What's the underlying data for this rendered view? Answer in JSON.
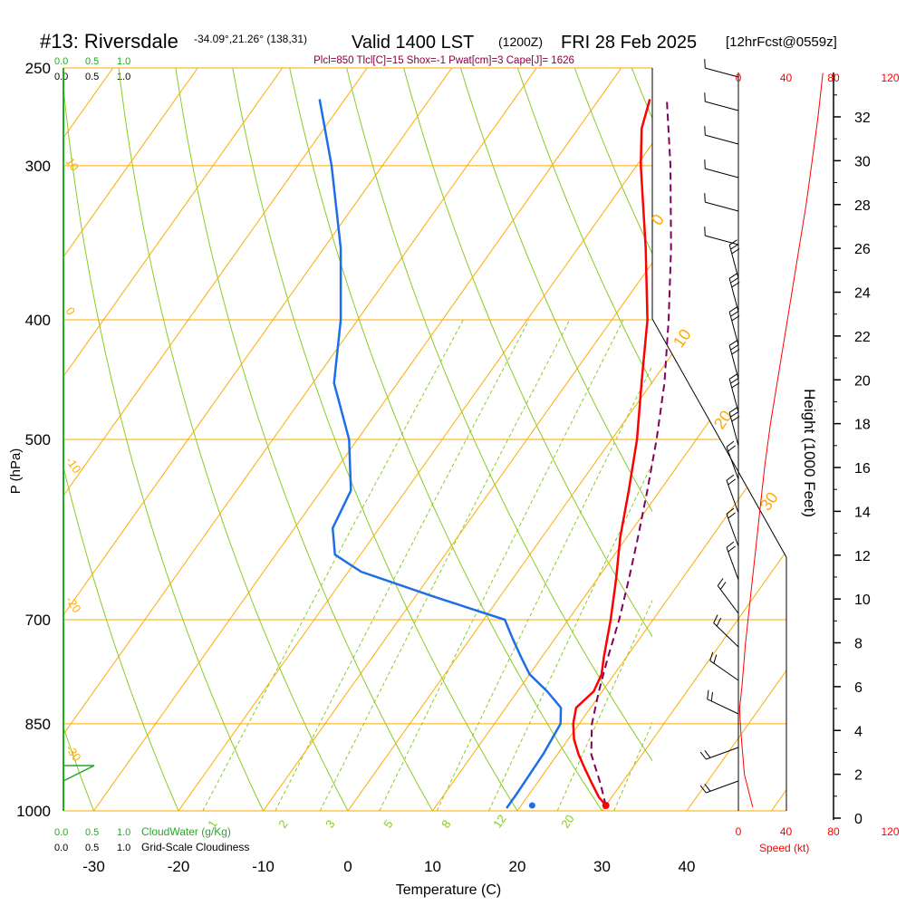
{
  "header": {
    "station": "#13: Riversdale",
    "coords": "-34.09°,21.26° (138,31)",
    "valid": "Valid 1400 LST",
    "zulu": "(1200Z)",
    "date": "FRI 28 Feb 2025",
    "forecast": "[12hrFcst@0559z]"
  },
  "indices": "Plcl=850 Tlcl[C]=15 Shox=-1 Pwat[cm]=3 Cape[J]= 1626",
  "cloud_scale": {
    "top_green": [
      "0.0",
      "0.5",
      "1.0"
    ],
    "top_black": [
      "0.0",
      "0.5",
      "1.0"
    ],
    "bottom_green": [
      "0.0",
      "0.5",
      "1.0"
    ],
    "bottom_black": [
      "0.0",
      "0.5",
      "1.0"
    ],
    "cloudwater_label": "CloudWater (g/Kg)",
    "cloudiness_label": "Grid-Scale Cloudiness"
  },
  "colors": {
    "isotherm": "#ffaa00",
    "dry_adiabat": "#88cc22",
    "mixing_ratio": "#88cc22",
    "temperature": "#ff0000",
    "dewpoint": "#1e6fe6",
    "parcel": "#800060",
    "cloud": "#22aa22",
    "speed": "#ff0000"
  },
  "chart_data": {
    "type": "skew-t",
    "xlabel": "Temperature (C)",
    "ylabel": "P (hPa)",
    "y2label": "Height (1000 Feet)",
    "xticks": [
      -30,
      -20,
      -10,
      0,
      10,
      20,
      30,
      40
    ],
    "pressure_labels": [
      250,
      300,
      400,
      500,
      700,
      850,
      1000
    ],
    "height_ticks": [
      0,
      2,
      4,
      6,
      8,
      10,
      12,
      14,
      16,
      18,
      20,
      22,
      24,
      26,
      28,
      30,
      32
    ],
    "isotherm_labels": [
      "0",
      "10",
      "20",
      "30",
      "-10",
      "-20",
      "-30",
      "10",
      "0",
      "-10",
      "-20",
      "-30"
    ],
    "mixing_ratio_labels": [
      "1",
      "2",
      "3",
      "5",
      "8",
      "12",
      "20"
    ],
    "speed_ticks_top": [
      "0",
      "40",
      "80",
      "120"
    ],
    "speed_ticks_bottom": [
      "0",
      "40",
      "80",
      "120"
    ],
    "speed_label": "Speed (kt)",
    "temperature": [
      {
        "p": 990,
        "t": 30.0
      },
      {
        "p": 975,
        "t": 28.5
      },
      {
        "p": 950,
        "t": 26.5
      },
      {
        "p": 925,
        "t": 24.5
      },
      {
        "p": 900,
        "t": 22.5
      },
      {
        "p": 875,
        "t": 20.7
      },
      {
        "p": 850,
        "t": 19.3
      },
      {
        "p": 825,
        "t": 18.3
      },
      {
        "p": 800,
        "t": 19.0
      },
      {
        "p": 775,
        "t": 18.5
      },
      {
        "p": 750,
        "t": 17.3
      },
      {
        "p": 700,
        "t": 15.0
      },
      {
        "p": 650,
        "t": 12.3
      },
      {
        "p": 600,
        "t": 9.2
      },
      {
        "p": 550,
        "t": 6.3
      },
      {
        "p": 500,
        "t": 3.0
      },
      {
        "p": 450,
        "t": -1.2
      },
      {
        "p": 400,
        "t": -5.8
      },
      {
        "p": 350,
        "t": -12.0
      },
      {
        "p": 300,
        "t": -19.5
      },
      {
        "p": 280,
        "t": -22.5
      },
      {
        "p": 265,
        "t": -24.0
      }
    ],
    "dewpoint": [
      {
        "p": 995,
        "t": 18.5
      },
      {
        "p": 970,
        "t": 18.5
      },
      {
        "p": 900,
        "t": 18.3
      },
      {
        "p": 850,
        "t": 17.8
      },
      {
        "p": 825,
        "t": 16.5
      },
      {
        "p": 800,
        "t": 13.5
      },
      {
        "p": 775,
        "t": 10.0
      },
      {
        "p": 750,
        "t": 7.5
      },
      {
        "p": 725,
        "t": 5.0
      },
      {
        "p": 700,
        "t": 2.5
      },
      {
        "p": 670,
        "t": -8.0
      },
      {
        "p": 640,
        "t": -18.5
      },
      {
        "p": 620,
        "t": -23.0
      },
      {
        "p": 590,
        "t": -25.5
      },
      {
        "p": 550,
        "t": -26.5
      },
      {
        "p": 500,
        "t": -31.0
      },
      {
        "p": 450,
        "t": -37.5
      },
      {
        "p": 400,
        "t": -42.0
      },
      {
        "p": 350,
        "t": -48.0
      },
      {
        "p": 300,
        "t": -56.0
      },
      {
        "p": 265,
        "t": -63.0
      }
    ],
    "parcel": [
      {
        "p": 990,
        "t": 30.0
      },
      {
        "p": 950,
        "t": 27.5
      },
      {
        "p": 900,
        "t": 24.0
      },
      {
        "p": 850,
        "t": 21.5
      },
      {
        "p": 800,
        "t": 19.6
      },
      {
        "p": 750,
        "t": 17.8
      },
      {
        "p": 700,
        "t": 16.0
      },
      {
        "p": 650,
        "t": 13.8
      },
      {
        "p": 600,
        "t": 11.3
      },
      {
        "p": 550,
        "t": 8.5
      },
      {
        "p": 500,
        "t": 5.3
      },
      {
        "p": 450,
        "t": 1.5
      },
      {
        "p": 400,
        "t": -3.3
      },
      {
        "p": 350,
        "t": -9.0
      },
      {
        "p": 300,
        "t": -16.0
      },
      {
        "p": 265,
        "t": -22.0
      }
    ],
    "surface": {
      "p": 990,
      "t": 30.0,
      "td": 21.3
    },
    "speed_profile": [
      {
        "h": 0.5,
        "s": 12
      },
      {
        "h": 2,
        "s": 5
      },
      {
        "h": 4,
        "s": 2
      },
      {
        "h": 5,
        "s": 1
      },
      {
        "h": 6,
        "s": 3
      },
      {
        "h": 8,
        "s": 6
      },
      {
        "h": 10,
        "s": 10
      },
      {
        "h": 12,
        "s": 14
      },
      {
        "h": 14,
        "s": 18
      },
      {
        "h": 16,
        "s": 22
      },
      {
        "h": 18,
        "s": 27
      },
      {
        "h": 20,
        "s": 33
      },
      {
        "h": 22,
        "s": 39
      },
      {
        "h": 24,
        "s": 45
      },
      {
        "h": 26,
        "s": 51
      },
      {
        "h": 28,
        "s": 57
      },
      {
        "h": 30,
        "s": 62
      },
      {
        "h": 32,
        "s": 67
      },
      {
        "h": 34,
        "s": 71
      }
    ]
  }
}
